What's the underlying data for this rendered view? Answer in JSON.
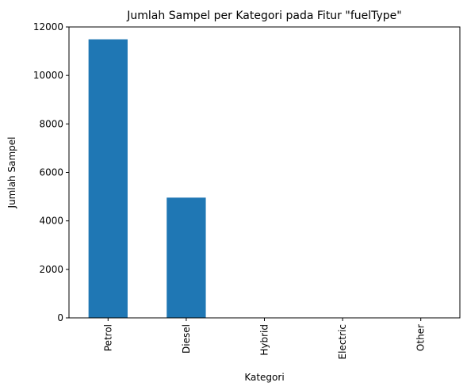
{
  "chart_data": {
    "type": "bar",
    "title": "Jumlah Sampel per Kategori pada Fitur \"fuelType\"",
    "xlabel": "Kategori",
    "ylabel": "Jumlah Sampel",
    "categories": [
      "Petrol",
      "Diesel",
      "Hybrid",
      "Electric",
      "Other"
    ],
    "values": [
      11490,
      4960,
      14,
      3,
      1
    ],
    "ylim": [
      0,
      12000
    ],
    "yticks": [
      0,
      2000,
      4000,
      6000,
      8000,
      10000,
      12000
    ],
    "bar_color": "#1f77b4",
    "grid": false,
    "legend": "none"
  }
}
